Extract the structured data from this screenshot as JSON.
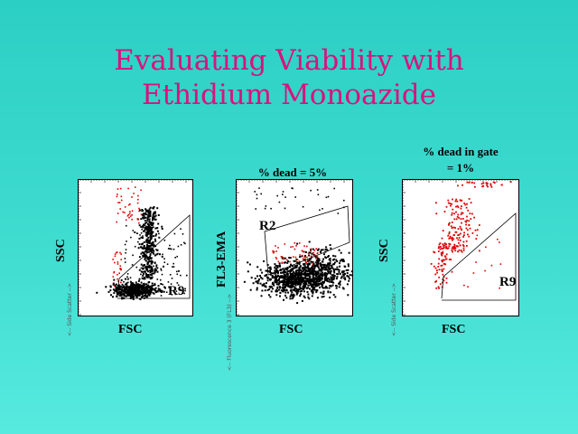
{
  "title_line1": "Evaluating Viability with",
  "title_line2": "Ethidium Monoazide",
  "colors": {
    "title": "#d8137e",
    "background": "#3fdcd0",
    "live": "#000000",
    "dead": "#e00000"
  },
  "chart_data": [
    {
      "type": "scatter",
      "title": "",
      "xlabel": "FSC",
      "ylabel": "SSC",
      "side_label": "<-- Side Scatter -->",
      "gate_label": "R9",
      "annotation": ""
    },
    {
      "type": "scatter",
      "title": "% dead = 5%",
      "xlabel": "FSC",
      "ylabel": "FL3-EMA",
      "side_label": "<-- Fluorescence 3 (FL3) -->",
      "gate_label": "R2",
      "annotation": ""
    },
    {
      "type": "scatter",
      "title_line1": "% dead in gate",
      "title_line2": "= 1%",
      "xlabel": "FSC",
      "ylabel": "SSC",
      "side_label": "<-- Side Scatter -->",
      "gate_label": "R9"
    }
  ]
}
